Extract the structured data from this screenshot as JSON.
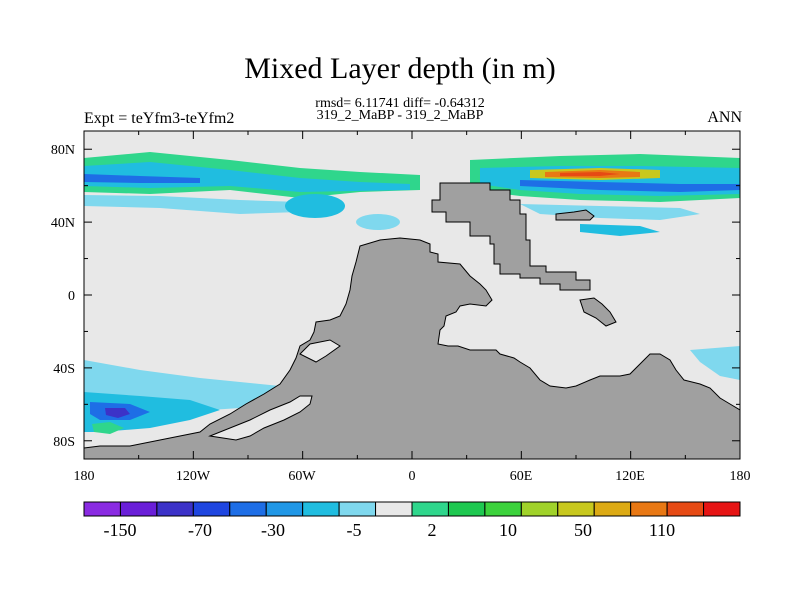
{
  "title": "Mixed Layer depth (in m)",
  "subtitle_line1": "rmsd= 6.11741 diff= -0.64312",
  "subtitle_line2": "319_2_MaBP - 319_2_MaBP",
  "left_string": "Expt = teYfm3-teYfm2",
  "right_string": "ANN",
  "x_ticks": [
    "180",
    "120W",
    "60W",
    "0",
    "60E",
    "120E",
    "180"
  ],
  "y_ticks": [
    "80N",
    "40N",
    "0",
    "40S",
    "80S"
  ],
  "colorbar": {
    "colors": [
      "#8a2be2",
      "#6a1fd8",
      "#3c32c8",
      "#1f46e0",
      "#1e6ee6",
      "#2097e6",
      "#20bde0",
      "#7fd8ee",
      "#e8e8e8",
      "#2fd68c",
      "#1ec850",
      "#3cd23c",
      "#a0d22a",
      "#c8c81e",
      "#dcaa14",
      "#e87814",
      "#e64a14",
      "#e61414"
    ],
    "labels": [
      "-150",
      "-70",
      "-30",
      "-5",
      "2",
      "10",
      "50",
      "110"
    ]
  },
  "map_colors": {
    "land": "#a0a0a0",
    "ocean_zero": "#e8e8e8",
    "coast": "#000000"
  }
}
